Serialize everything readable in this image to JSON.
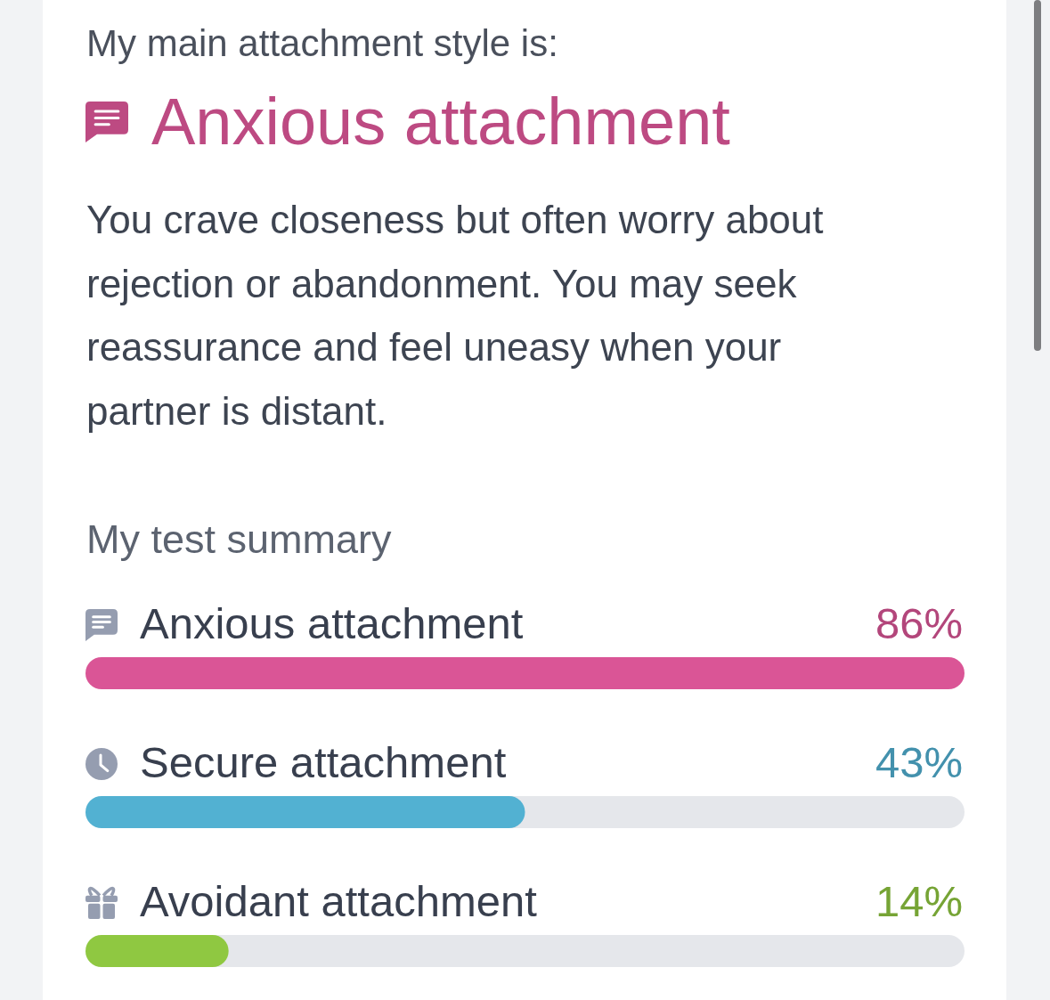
{
  "chart_data": {
    "type": "bar",
    "orientation": "horizontal",
    "title": "Anxious attachment",
    "subtitle": "You crave closeness but often worry about rejection or abandonment. You may seek reassurance and feel uneasy when your partner is distant.",
    "annotations": [
      "My main attachment style is:",
      "My test summary"
    ],
    "categories": [
      "Anxious attachment",
      "Secure attachment",
      "Avoidant attachment"
    ],
    "values": [
      86,
      43,
      14
    ],
    "colors": [
      "#da5596",
      "#52b1d2",
      "#8fc841"
    ],
    "value_labels": [
      "86%",
      "43%",
      "14%"
    ],
    "xlim": [
      0,
      86
    ],
    "tick_labels": "y"
  }
}
